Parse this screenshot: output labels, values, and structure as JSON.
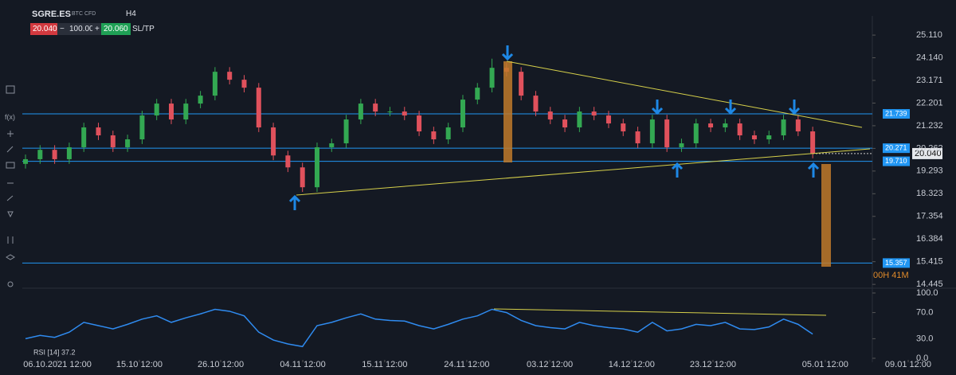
{
  "toolbar": {
    "symbol": "SGRE.ES",
    "subtitle": "BTC CFD",
    "timeframe": "H4",
    "sell": "20.040",
    "minus": "−",
    "quantity": "100.00",
    "plus": "+",
    "buy": "20.060",
    "sltp": "SL/TP",
    "fx": "f(x)"
  },
  "chart_data": {
    "type": "candlestick",
    "up_color": "#33a852",
    "down_color": "#e0515c",
    "xlim": [
      -0.11,
      62.19
    ],
    "xticks": [
      {
        "value": 2.19,
        "label": "06.10.2021 12:00"
      },
      {
        "value": 7.81,
        "label": "15.10 12:00"
      },
      {
        "value": 13.39,
        "label": "26.10 12:00"
      },
      {
        "value": 19.02,
        "label": "04.11 12:00"
      },
      {
        "value": 24.64,
        "label": "15.11 12:00"
      },
      {
        "value": 30.27,
        "label": "24.11 12:00"
      },
      {
        "value": 35.96,
        "label": "03.12 12:00"
      },
      {
        "value": 41.58,
        "label": "14.12 12:00"
      },
      {
        "value": 47.16,
        "label": "23.12 12:00"
      },
      {
        "value": 54.86,
        "label": "05.01 12:00"
      },
      {
        "value": 60.55,
        "label": "09.01 12:00"
      }
    ],
    "ylim": [
      14.28,
      25.93
    ],
    "yticks": [
      {
        "value": 25.11,
        "label": "25.110"
      },
      {
        "value": 24.14,
        "label": "24.140"
      },
      {
        "value": 23.171,
        "label": "23.171"
      },
      {
        "value": 22.201,
        "label": "22.201"
      },
      {
        "value": 21.232,
        "label": "21.232"
      },
      {
        "value": 20.262,
        "label": "20.262"
      },
      {
        "value": 19.293,
        "label": "19.293"
      },
      {
        "value": 18.323,
        "label": "18.323"
      },
      {
        "value": 17.354,
        "label": "17.354"
      },
      {
        "value": 16.384,
        "label": "16.384"
      },
      {
        "value": 15.415,
        "label": "15.415"
      },
      {
        "value": 14.445,
        "label": "14.445"
      }
    ],
    "open": [
      19.6,
      19.8,
      20.2,
      19.8,
      20.31,
      21.16,
      20.82,
      20.31,
      20.65,
      21.67,
      22.18,
      21.5,
      22.18,
      22.52,
      23.54,
      23.2,
      22.86,
      21.16,
      19.96,
      19.45,
      18.6,
      20.31,
      20.48,
      21.5,
      22.18,
      21.84,
      21.84,
      21.67,
      20.99,
      20.65,
      21.16,
      22.35,
      22.86,
      23.71,
      23.54,
      22.52,
      21.84,
      21.5,
      21.16,
      21.84,
      21.67,
      21.33,
      20.99,
      20.48,
      21.5,
      20.31,
      20.48,
      21.33,
      21.16,
      21.33,
      20.82,
      20.65,
      20.82,
      21.5,
      20.99
    ],
    "close": [
      19.8,
      20.2,
      19.8,
      20.31,
      21.16,
      20.82,
      20.31,
      20.65,
      21.67,
      22.18,
      21.5,
      22.18,
      22.52,
      23.54,
      23.2,
      22.86,
      21.16,
      19.96,
      19.45,
      18.6,
      20.31,
      20.48,
      21.5,
      22.18,
      21.84,
      21.84,
      21.67,
      20.99,
      20.65,
      21.16,
      22.35,
      22.86,
      23.71,
      23.54,
      22.52,
      21.84,
      21.5,
      21.16,
      21.84,
      21.67,
      21.33,
      20.99,
      20.48,
      21.5,
      20.31,
      20.48,
      21.33,
      21.16,
      21.33,
      20.82,
      20.65,
      20.82,
      21.5,
      20.99,
      20.04
    ],
    "high": [
      20.0,
      20.4,
      20.4,
      20.51,
      21.36,
      21.36,
      21.02,
      20.85,
      21.87,
      22.38,
      22.38,
      22.38,
      22.72,
      23.74,
      23.74,
      23.4,
      23.06,
      21.36,
      20.16,
      19.65,
      20.51,
      20.68,
      21.7,
      22.38,
      22.38,
      22.04,
      22.04,
      21.87,
      21.19,
      21.36,
      22.55,
      23.06,
      24.1,
      23.91,
      23.74,
      22.72,
      22.04,
      21.7,
      22.04,
      22.04,
      21.87,
      21.53,
      21.19,
      21.7,
      21.7,
      20.68,
      21.53,
      21.53,
      21.53,
      21.53,
      21.02,
      21.02,
      21.7,
      21.7,
      21.19
    ],
    "low": [
      19.4,
      19.6,
      19.6,
      19.6,
      20.11,
      20.62,
      20.11,
      20.11,
      20.45,
      21.47,
      21.3,
      21.3,
      21.98,
      22.32,
      23.0,
      22.66,
      20.96,
      19.76,
      19.25,
      18.4,
      18.4,
      20.11,
      20.28,
      21.3,
      21.64,
      21.64,
      21.47,
      20.79,
      20.45,
      20.45,
      20.96,
      22.15,
      22.66,
      23.34,
      22.32,
      21.64,
      21.3,
      20.96,
      20.96,
      21.47,
      21.13,
      20.79,
      20.28,
      20.28,
      20.11,
      20.11,
      20.28,
      20.96,
      20.96,
      20.62,
      20.45,
      20.45,
      20.62,
      20.79,
      19.84
    ],
    "level_color": "#2196f3",
    "levels": [
      21.739,
      {
        "value": 20.271,
        "label": "20.271"
      },
      {
        "value": 19.71,
        "label": "19.710"
      },
      15.357
    ],
    "last_price": {
      "value": 20.04,
      "label": "20.040"
    },
    "countdown": "00H 41M",
    "rsi": {
      "label": "RSI [14] 37.2",
      "color": "#2f8bf0",
      "ylim": [
        0,
        100
      ],
      "yticks": [
        {
          "value": 100,
          "label": "100.0"
        },
        {
          "value": 70,
          "label": "70.0"
        },
        {
          "value": 30,
          "label": "30.0"
        },
        {
          "value": 0,
          "label": "0.0"
        }
      ],
      "values": [
        30,
        35,
        32,
        40,
        55,
        50,
        45,
        52,
        60,
        65,
        55,
        62,
        68,
        75,
        72,
        65,
        40,
        28,
        22,
        18,
        50,
        55,
        62,
        68,
        60,
        58,
        57,
        50,
        45,
        52,
        60,
        65,
        75,
        70,
        58,
        50,
        47,
        45,
        55,
        50,
        47,
        45,
        40,
        55,
        42,
        45,
        52,
        50,
        55,
        45,
        44,
        48,
        60,
        52,
        37
      ]
    }
  }
}
